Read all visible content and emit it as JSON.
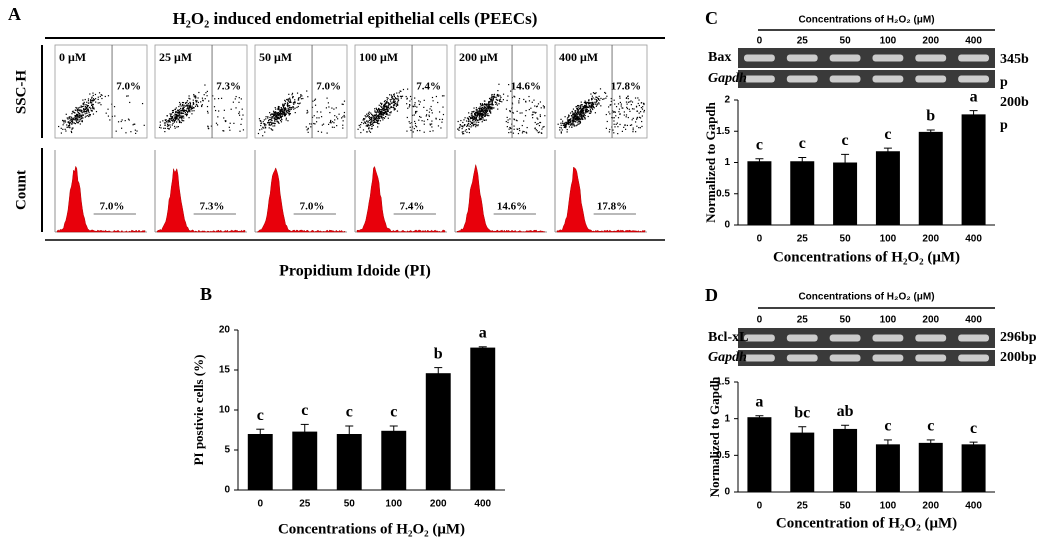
{
  "panel_a": {
    "label": "A",
    "title": "H₂O₂ induced endometrial epithelial cells (PEECs)",
    "y_labels": [
      "SSC-H",
      "Count"
    ],
    "conditions": [
      "0 μM",
      "25 μM",
      "50 μM",
      "100 μM",
      "200 μM",
      "400 μM"
    ],
    "scatter_percent": [
      "7.0%",
      "7.3%",
      "7.0%",
      "7.4%",
      "14.6%",
      "17.8%"
    ],
    "histogram_percent": [
      "7.0%",
      "7.3%",
      "7.0%",
      "7.4%",
      "14.6%",
      "17.8%"
    ],
    "x_label": "Propidium Idoide (PI)"
  },
  "chart_data": [
    {
      "type": "bar",
      "panel_label": "B",
      "y_label": "PI postivie cells (%)",
      "x_label": "Concentrations of H₂O₂ (μM)",
      "categories": [
        "0",
        "25",
        "50",
        "100",
        "200",
        "400"
      ],
      "values": [
        7.0,
        7.3,
        7.0,
        7.4,
        14.6,
        17.8
      ],
      "errors": [
        0.6,
        0.9,
        1.0,
        0.6,
        0.7,
        0.1
      ],
      "letters": [
        "c",
        "c",
        "c",
        "c",
        "b",
        "a"
      ],
      "color": "#000000",
      "ylim": [
        0,
        20
      ],
      "yticks": [
        0,
        5,
        10,
        15,
        20
      ]
    },
    {
      "type": "bar",
      "panel_label": "C",
      "gel": {
        "header": "Concentrations of H₂O₂ (μM)",
        "lanes": [
          "0",
          "25",
          "50",
          "100",
          "200",
          "400"
        ],
        "rows": [
          {
            "name": "Bax",
            "size_lines": [
              "345b",
              "p"
            ]
          },
          {
            "name": "Gapdh",
            "size_lines": [
              "200b",
              "p"
            ]
          }
        ]
      },
      "y_label": "Normalized to Gapdh",
      "x_label": "Concentrations of H₂O₂ (μM)",
      "categories": [
        "0",
        "25",
        "50",
        "100",
        "200",
        "400"
      ],
      "values": [
        1.02,
        1.02,
        1.0,
        1.18,
        1.49,
        1.77
      ],
      "errors": [
        0.04,
        0.06,
        0.13,
        0.05,
        0.03,
        0.06
      ],
      "letters": [
        "c",
        "c",
        "c",
        "c",
        "b",
        "a"
      ],
      "color": "#000000",
      "ylim": [
        0,
        2
      ],
      "yticks": [
        0,
        0.5,
        1,
        1.5,
        2
      ]
    },
    {
      "type": "bar",
      "panel_label": "D",
      "gel": {
        "header": "Concentrations of H₂O₂ (μM)",
        "lanes": [
          "0",
          "25",
          "50",
          "100",
          "200",
          "400"
        ],
        "rows": [
          {
            "name": "Bcl-xL",
            "size_lines": [
              "296bp"
            ]
          },
          {
            "name": "Gapdh",
            "size_lines": [
              "200bp"
            ]
          }
        ]
      },
      "y_label": "Normalized to Gapdh",
      "x_label": "Concentration of H₂O₂ (μM)",
      "categories": [
        "0",
        "25",
        "50",
        "100",
        "200",
        "400"
      ],
      "values": [
        1.02,
        0.81,
        0.86,
        0.65,
        0.67,
        0.65
      ],
      "errors": [
        0.02,
        0.08,
        0.05,
        0.06,
        0.04,
        0.03
      ],
      "letters": [
        "a",
        "bc",
        "ab",
        "c",
        "c",
        "c"
      ],
      "color": "#000000",
      "ylim": [
        0,
        1.5
      ],
      "yticks": [
        0,
        0.5,
        1,
        1.5
      ]
    }
  ]
}
